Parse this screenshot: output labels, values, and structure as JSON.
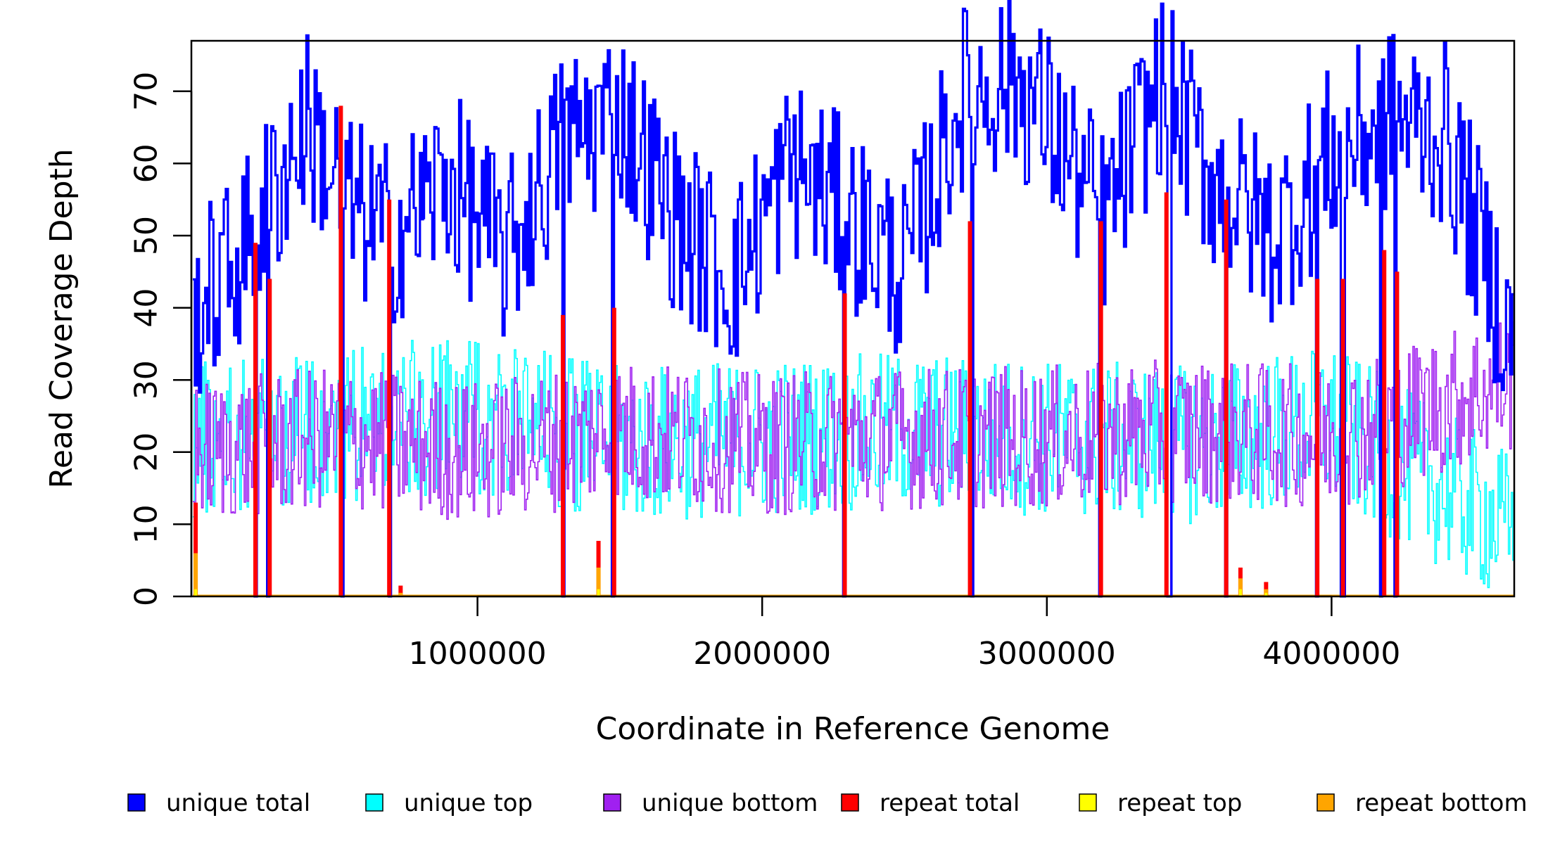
{
  "chart_data": {
    "type": "line",
    "xlabel": "Coordinate in Reference Genome",
    "ylabel": "Read Coverage Depth",
    "xlim": [
      0,
      4641652
    ],
    "ylim": [
      0,
      77
    ],
    "x_ticks": [
      1000000,
      2000000,
      3000000,
      4000000
    ],
    "x_tick_labels": [
      "1000000",
      "2000000",
      "3000000",
      "4000000"
    ],
    "y_ticks": [
      0,
      10,
      20,
      30,
      40,
      50,
      60,
      70
    ],
    "y_tick_labels": [
      "0",
      "10",
      "20",
      "30",
      "40",
      "50",
      "60",
      "70"
    ],
    "grid": false,
    "legend_position": "bottom",
    "colors": {
      "unique_total": "#0000ff",
      "unique_top": "#00ffff",
      "unique_bottom": "#a020f0",
      "repeat_total": "#ff0000",
      "repeat_top": "#ffff00",
      "repeat_bottom": "#ffa500"
    },
    "series": [
      {
        "name": "unique total",
        "color": "#0000ff",
        "x": [
          0,
          200000,
          400000,
          550000,
          700000,
          900000,
          1100000,
          1300000,
          1500000,
          1700000,
          1900000,
          2100000,
          2300000,
          2500000,
          2700000,
          2880000,
          3000000,
          3200000,
          3400000,
          3600000,
          3800000,
          4000000,
          4200000,
          4400000,
          4641652
        ],
        "values": [
          39,
          49,
          66,
          54,
          50,
          58,
          47,
          63,
          67,
          52,
          44,
          60,
          53,
          45,
          69,
          72,
          66,
          52,
          71,
          57,
          50,
          61,
          66,
          64,
          34
        ]
      },
      {
        "name": "unique top",
        "color": "#00ffff",
        "x": [
          0,
          500000,
          1000000,
          1500000,
          2000000,
          2500000,
          3000000,
          3500000,
          4000000,
          4641652
        ],
        "values": [
          22,
          24,
          25,
          21,
          22,
          23,
          22,
          21,
          24,
          9
        ]
      },
      {
        "name": "unique bottom",
        "color": "#a020f0",
        "x": [
          0,
          500000,
          1000000,
          1500000,
          2000000,
          2500000,
          3000000,
          3500000,
          4000000,
          4641652
        ],
        "values": [
          20,
          22,
          20,
          23,
          21,
          22,
          22,
          23,
          22,
          30
        ]
      },
      {
        "name": "repeat total",
        "color": "#ff0000",
        "x": [
          10000,
          220000,
          270000,
          520000,
          690000,
          730000,
          1300000,
          1425000,
          1480000,
          2290000,
          2730000,
          3190000,
          3420000,
          3630000,
          3680000,
          3770000,
          3950000,
          4040000,
          4185000,
          4230000
        ],
        "values": [
          13,
          49,
          44,
          68,
          55,
          1.5,
          39,
          7.7,
          40,
          42,
          52,
          52,
          56,
          55,
          4,
          2,
          44,
          44,
          48,
          45
        ]
      },
      {
        "name": "repeat top",
        "color": "#ffff00",
        "x": [
          10000,
          1425000,
          3680000,
          3770000
        ],
        "values": [
          1,
          1,
          1,
          0.5
        ]
      },
      {
        "name": "repeat bottom",
        "color": "#ffa500",
        "x": [
          10000,
          730000,
          1425000,
          3680000,
          3770000
        ],
        "values": [
          6,
          0.5,
          4,
          2.5,
          1
        ]
      }
    ],
    "legend": [
      "unique total",
      "unique top",
      "unique bottom",
      "repeat total",
      "repeat top",
      "repeat bottom"
    ]
  }
}
